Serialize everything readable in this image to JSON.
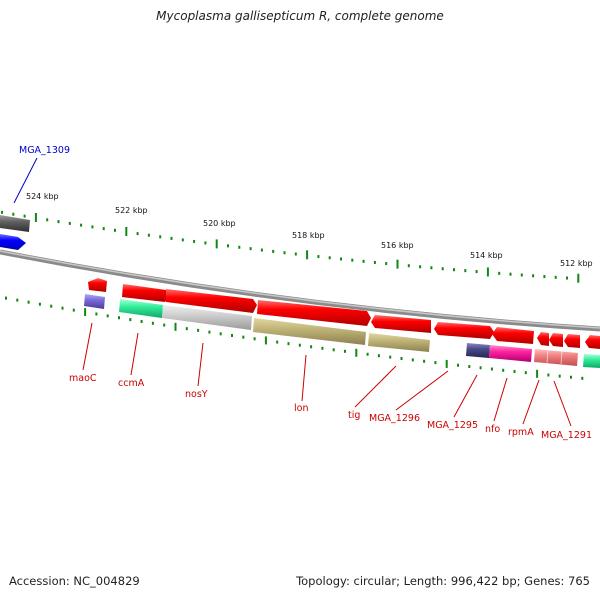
{
  "title": "Mycoplasma gallisepticum R, complete genome",
  "accession": "Accession: NC_004829",
  "summary": "Topology: circular; Length: 996,422 bp; Genes: 765",
  "kbp_labels": [
    "524 kbp",
    "522 kbp",
    "520 kbp",
    "518 kbp",
    "516 kbp",
    "514 kbp",
    "512 kbp"
  ],
  "gene_labels": {
    "mga1309": "MGA_1309",
    "maoC": "maoC",
    "ccmA": "ccmA",
    "nosY": "nosY",
    "lon": "lon",
    "tig": "tig",
    "mga1296": "MGA_1296",
    "mga1295": "MGA_1295",
    "nfo": "nfo",
    "rpmA": "rpmA",
    "mga1291": "MGA_1291"
  },
  "colors": {
    "cds": "#ff0000",
    "gene_label": "#cc0000",
    "highlight_label": "#0000cc",
    "tick": "#118811",
    "backbone": "#888888"
  }
}
